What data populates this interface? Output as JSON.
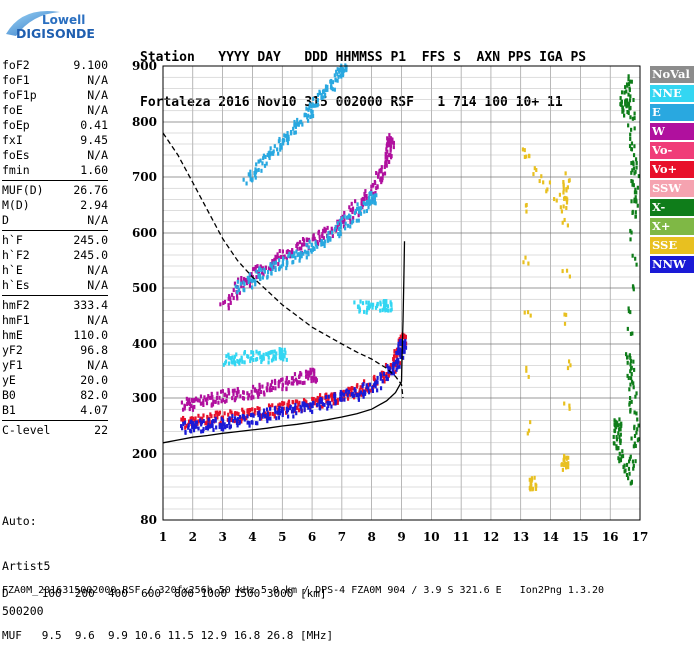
{
  "logo": {
    "line1": "Lowell",
    "line2": "DIGISONDE"
  },
  "header": {
    "line1": "Station   YYYY DAY   DDD HHMMSS P1  FFS S  AXN PPS IGA PS",
    "line2": "Fortaleza 2016 Nov10 315 002000 RSF   1 714 100 10+ 11"
  },
  "params": {
    "group1": [
      {
        "label": "foF2",
        "value": "9.100"
      },
      {
        "label": "foF1",
        "value": "N/A"
      },
      {
        "label": "foF1p",
        "value": "N/A"
      },
      {
        "label": "foE",
        "value": "N/A"
      },
      {
        "label": "foEp",
        "value": "0.41"
      },
      {
        "label": "fxI",
        "value": "9.45"
      },
      {
        "label": "foEs",
        "value": "N/A"
      },
      {
        "label": "fmin",
        "value": "1.60"
      }
    ],
    "group2": [
      {
        "label": "MUF(D)",
        "value": "26.76"
      },
      {
        "label": "M(D)",
        "value": "2.94"
      },
      {
        "label": "D",
        "value": "N/A"
      }
    ],
    "group3": [
      {
        "label": "h`F",
        "value": "245.0"
      },
      {
        "label": "h`F2",
        "value": "245.0"
      },
      {
        "label": "h`E",
        "value": "N/A"
      },
      {
        "label": "h`Es",
        "value": "N/A"
      }
    ],
    "group4": [
      {
        "label": "hmF2",
        "value": "333.4"
      },
      {
        "label": "hmF1",
        "value": "N/A"
      },
      {
        "label": "hmE",
        "value": "110.0"
      },
      {
        "label": "yF2",
        "value": "96.8"
      },
      {
        "label": "yF1",
        "value": "N/A"
      },
      {
        "label": "yE",
        "value": "20.0"
      },
      {
        "label": "B0",
        "value": "82.0"
      },
      {
        "label": "B1",
        "value": "4.07"
      }
    ],
    "group5": [
      {
        "label": "C-level",
        "value": "22"
      }
    ]
  },
  "auto": {
    "line1": "Auto:",
    "line2": "Artist5",
    "line3": "500200"
  },
  "legend": [
    {
      "label": "NoVal",
      "color": "#8c8c8c"
    },
    {
      "label": "NNE",
      "color": "#33d6f2"
    },
    {
      "label": "E",
      "color": "#29a8e0"
    },
    {
      "label": "W",
      "color": "#b0109e"
    },
    {
      "label": "Vo-",
      "color": "#f03c78"
    },
    {
      "label": "Vo+",
      "color": "#e8102a"
    },
    {
      "label": "SSW",
      "color": "#f5a3b0"
    },
    {
      "label": "X-",
      "color": "#0f7d1a"
    },
    {
      "label": "X+",
      "color": "#7fb845"
    },
    {
      "label": "SSE",
      "color": "#e8c020"
    },
    {
      "label": "NNW",
      "color": "#1a1ad6"
    }
  ],
  "bottom": {
    "line1": "D     100  200  400  600  800 1000 1500 3000 [km]",
    "line2": "MUF   9.5  9.6  9.9 10.6 11.5 12.9 16.8 26.8 [MHz]"
  },
  "footer": "FZA0M_2016315002000.RSF / 320fx256h 50 kHz 5.0 km / DPS-4 FZA0M 904 / 3.9 S 321.6 E   Ion2Png 1.3.20",
  "chart_data": {
    "type": "scatter",
    "x_ticks": [
      "1",
      "2",
      "3",
      "4",
      "5",
      "6",
      "7",
      "8",
      "9",
      "10",
      "11",
      "12",
      "13",
      "14",
      "15",
      "16",
      "17"
    ],
    "y_ticks": [
      "80",
      "200",
      "300",
      "400",
      "500",
      "600",
      "700",
      "800",
      "900"
    ],
    "xlim": [
      1,
      17
    ],
    "ylim": [
      80,
      900
    ],
    "grid": true,
    "legend_placement": "right",
    "traces": [
      {
        "color": "#b0109e",
        "points": [
          [
            1.7,
            290
          ],
          [
            2.0,
            295
          ],
          [
            2.5,
            300
          ],
          [
            3.0,
            305
          ],
          [
            3.5,
            310
          ],
          [
            4.0,
            315
          ],
          [
            4.5,
            320
          ],
          [
            5.0,
            330
          ],
          [
            5.5,
            340
          ],
          [
            6.0,
            345
          ]
        ]
      },
      {
        "color": "#e8102a",
        "points": [
          [
            1.7,
            260
          ],
          [
            2.0,
            262
          ],
          [
            2.5,
            265
          ],
          [
            3.0,
            268
          ],
          [
            3.5,
            272
          ],
          [
            4.0,
            275
          ],
          [
            4.5,
            280
          ],
          [
            5.0,
            285
          ],
          [
            5.5,
            290
          ],
          [
            6.0,
            295
          ],
          [
            6.5,
            300
          ],
          [
            7.0,
            308
          ],
          [
            7.5,
            318
          ],
          [
            8.0,
            330
          ],
          [
            8.5,
            350
          ],
          [
            8.8,
            375
          ],
          [
            9.0,
            410
          ]
        ]
      },
      {
        "color": "#1a1ad6",
        "points": [
          [
            1.7,
            250
          ],
          [
            2.0,
            252
          ],
          [
            2.5,
            255
          ],
          [
            3.0,
            258
          ],
          [
            3.5,
            262
          ],
          [
            4.0,
            266
          ],
          [
            4.5,
            272
          ],
          [
            5.0,
            278
          ],
          [
            5.5,
            284
          ],
          [
            6.0,
            290
          ],
          [
            6.5,
            296
          ],
          [
            7.0,
            304
          ],
          [
            7.5,
            312
          ],
          [
            8.0,
            325
          ],
          [
            8.5,
            345
          ],
          [
            8.8,
            370
          ],
          [
            9.0,
            400
          ]
        ]
      },
      {
        "color": "#b0109e",
        "points": [
          [
            3.0,
            470
          ],
          [
            3.5,
            505
          ],
          [
            4.0,
            525
          ],
          [
            4.5,
            545
          ],
          [
            5.0,
            560
          ],
          [
            5.5,
            575
          ],
          [
            6.0,
            590
          ],
          [
            6.5,
            605
          ],
          [
            7.0,
            625
          ],
          [
            7.5,
            650
          ],
          [
            8.0,
            680
          ],
          [
            8.3,
            710
          ],
          [
            8.5,
            740
          ],
          [
            8.6,
            770
          ]
        ]
      },
      {
        "color": "#29a8e0",
        "points": [
          [
            3.5,
            505
          ],
          [
            4.0,
            520
          ],
          [
            4.5,
            535
          ],
          [
            5.0,
            550
          ],
          [
            5.5,
            563
          ],
          [
            6.0,
            578
          ],
          [
            6.5,
            595
          ],
          [
            7.0,
            615
          ],
          [
            7.5,
            640
          ],
          [
            8.0,
            665
          ]
        ]
      },
      {
        "color": "#29a8e0",
        "points": [
          [
            3.8,
            700
          ],
          [
            4.2,
            720
          ],
          [
            4.6,
            745
          ],
          [
            5.0,
            770
          ],
          [
            5.4,
            795
          ],
          [
            5.8,
            820
          ],
          [
            6.2,
            845
          ],
          [
            6.6,
            870
          ],
          [
            7.0,
            895
          ]
        ]
      },
      {
        "color": "#33d6f2",
        "points": [
          [
            7.5,
            470
          ],
          [
            8.0,
            470
          ],
          [
            8.5,
            470
          ]
        ]
      },
      {
        "color": "#33d6f2",
        "points": [
          [
            3.0,
            375
          ],
          [
            3.5,
            375
          ],
          [
            4.0,
            380
          ],
          [
            4.5,
            380
          ],
          [
            5.0,
            385
          ]
        ]
      },
      {
        "color": "#0f7d1a",
        "points": [
          [
            16.4,
            850
          ],
          [
            16.5,
            820
          ],
          [
            16.6,
            880
          ],
          [
            16.7,
            760
          ],
          [
            16.8,
            700
          ],
          [
            16.8,
            640
          ],
          [
            16.6,
            380
          ],
          [
            16.7,
            330
          ],
          [
            16.8,
            240
          ],
          [
            16.6,
            160
          ],
          [
            16.2,
            210
          ],
          [
            16.2,
            255
          ]
        ]
      },
      {
        "color": "#e8c020",
        "points": [
          [
            14.4,
            180
          ],
          [
            14.5,
            200
          ],
          [
            14.5,
            700
          ],
          [
            14.4,
            650
          ],
          [
            13.0,
            750
          ],
          [
            13.4,
            150
          ]
        ]
      }
    ],
    "curves": [
      {
        "style": "dashed",
        "points": [
          [
            1.0,
            780
          ],
          [
            1.5,
            740
          ],
          [
            2.0,
            690
          ],
          [
            2.5,
            640
          ],
          [
            3.0,
            590
          ],
          [
            3.5,
            550
          ],
          [
            4.0,
            520
          ],
          [
            4.5,
            495
          ],
          [
            5.0,
            470
          ],
          [
            5.5,
            450
          ],
          [
            6.0,
            430
          ],
          [
            6.5,
            415
          ],
          [
            7.0,
            400
          ],
          [
            7.5,
            385
          ],
          [
            8.0,
            372
          ],
          [
            8.5,
            355
          ],
          [
            8.8,
            340
          ],
          [
            9.0,
            325
          ],
          [
            9.05,
            300
          ]
        ]
      },
      {
        "style": "solid",
        "points": [
          [
            1.0,
            220
          ],
          [
            1.5,
            225
          ],
          [
            2.0,
            230
          ],
          [
            2.5,
            233
          ],
          [
            3.0,
            237
          ],
          [
            3.5,
            240
          ],
          [
            4.0,
            243
          ],
          [
            4.5,
            246
          ],
          [
            5.0,
            250
          ],
          [
            5.5,
            253
          ],
          [
            6.0,
            257
          ],
          [
            6.5,
            261
          ],
          [
            7.0,
            266
          ],
          [
            7.5,
            272
          ],
          [
            8.0,
            280
          ],
          [
            8.5,
            295
          ],
          [
            8.8,
            310
          ],
          [
            9.0,
            330
          ]
        ]
      },
      {
        "style": "solid",
        "points": [
          [
            9.0,
            330
          ],
          [
            9.02,
            380
          ],
          [
            9.05,
            440
          ],
          [
            9.08,
            520
          ],
          [
            9.1,
            585
          ]
        ]
      }
    ]
  }
}
